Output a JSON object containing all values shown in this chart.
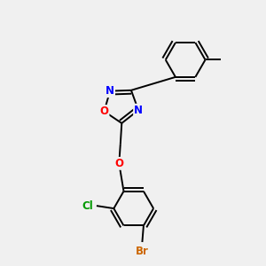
{
  "background_color": "#f0f0f0",
  "bond_color": "#000000",
  "atom_colors": {
    "O": "#ff0000",
    "N": "#0000ff",
    "Br": "#cc6600",
    "Cl": "#009900",
    "C": "#000000"
  },
  "figsize": [
    3.0,
    3.0
  ],
  "dpi": 100,
  "lw": 1.4
}
